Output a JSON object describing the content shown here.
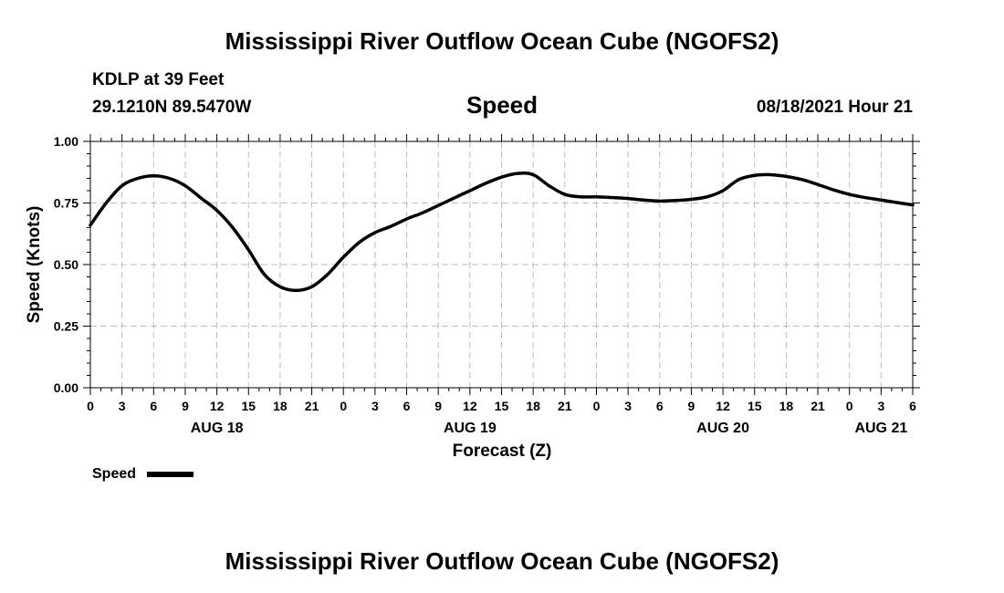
{
  "header": {
    "title": "Mississippi River Outflow Ocean Cube (NGOFS2)",
    "station": "KDLP at 39 Feet",
    "coords": "29.1210N  89.5470W",
    "variable": "Speed",
    "date": "08/18/2021 Hour 21"
  },
  "footer": {
    "title": "Mississippi River Outflow Ocean Cube (NGOFS2)"
  },
  "chart_data": {
    "type": "line",
    "title": "Speed",
    "xlabel": "Forecast (Z)",
    "ylabel": "Speed (Knots)",
    "ylim": [
      0,
      1
    ],
    "xlim_hours": [
      0,
      78
    ],
    "yticks": [
      "0.00",
      "0.25",
      "0.50",
      "0.75",
      "1.00"
    ],
    "xticks": [
      "0",
      "3",
      "6",
      "9",
      "12",
      "15",
      "18",
      "21",
      "0",
      "3",
      "6",
      "9",
      "12",
      "15",
      "18",
      "21",
      "0",
      "3",
      "6",
      "9",
      "12",
      "15",
      "18",
      "21",
      "0",
      "3",
      "6"
    ],
    "date_labels": [
      {
        "label": "AUG 18",
        "hour": 12
      },
      {
        "label": "AUG 19",
        "hour": 36
      },
      {
        "label": "AUG 20",
        "hour": 60
      },
      {
        "label": "AUG 21",
        "hour": 75
      }
    ],
    "legend": "Speed",
    "grid": true,
    "series": [
      {
        "name": "Speed",
        "x": [
          0,
          1.5,
          3,
          4.5,
          6,
          7.5,
          9,
          10.5,
          12,
          13.5,
          15,
          16.5,
          18,
          19.5,
          21,
          22.5,
          24,
          25.5,
          27,
          28.5,
          30,
          31.5,
          33,
          34.5,
          36,
          37.5,
          39,
          40.5,
          42,
          43.5,
          45,
          46.5,
          48,
          49.5,
          51,
          52.5,
          54,
          55.5,
          57,
          58.5,
          60,
          61.5,
          63,
          64.5,
          66,
          67.5,
          69,
          70.5,
          72,
          73.5,
          75,
          76.5,
          78
        ],
        "values": [
          0.66,
          0.75,
          0.82,
          0.85,
          0.86,
          0.85,
          0.82,
          0.77,
          0.72,
          0.65,
          0.56,
          0.46,
          0.41,
          0.395,
          0.41,
          0.46,
          0.53,
          0.59,
          0.63,
          0.655,
          0.685,
          0.71,
          0.74,
          0.77,
          0.8,
          0.83,
          0.855,
          0.87,
          0.865,
          0.82,
          0.785,
          0.775,
          0.775,
          0.772,
          0.768,
          0.762,
          0.758,
          0.76,
          0.765,
          0.775,
          0.8,
          0.845,
          0.862,
          0.865,
          0.858,
          0.845,
          0.825,
          0.803,
          0.785,
          0.772,
          0.762,
          0.752,
          0.742
        ]
      }
    ]
  }
}
